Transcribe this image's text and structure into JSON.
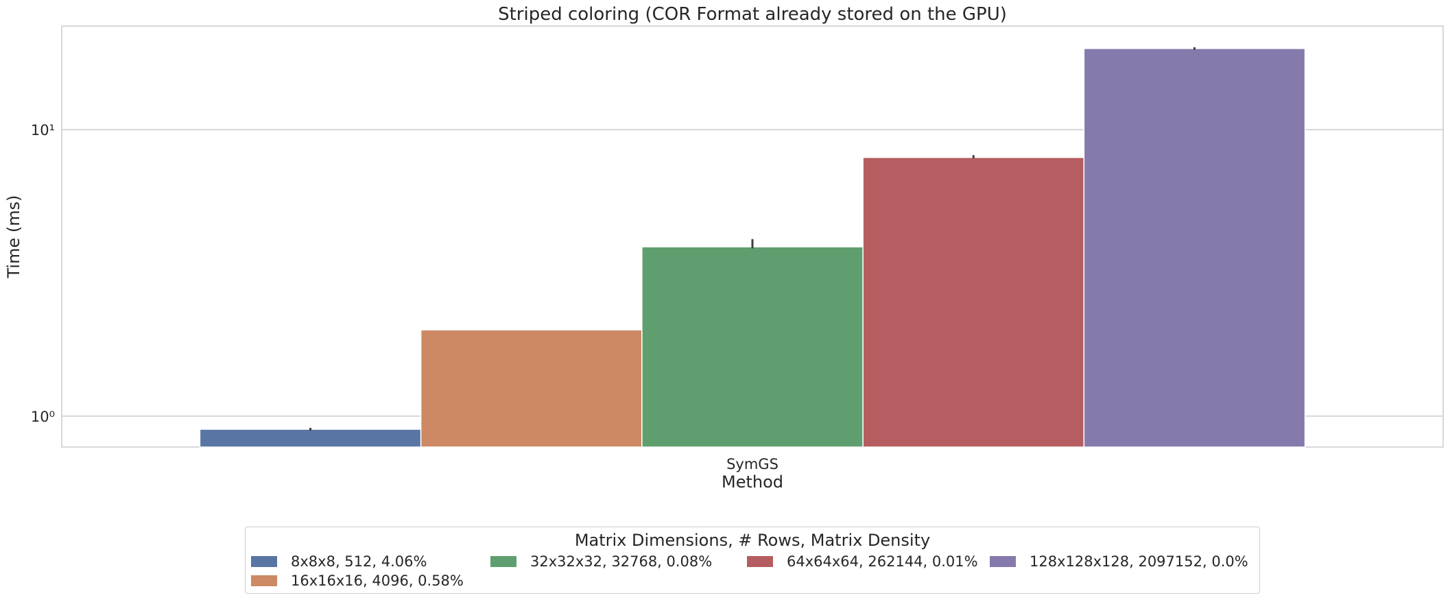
{
  "chart_data": {
    "type": "bar",
    "title": "Striped coloring (COR Format already stored on the GPU)",
    "xlabel": "Method",
    "ylabel": "Time (ms)",
    "yscale": "log",
    "ylim": [
      0.78,
      23
    ],
    "yticks": [
      {
        "value": 1,
        "label": "10⁰"
      },
      {
        "value": 10,
        "label": "10¹"
      }
    ],
    "categories": [
      "SymGS"
    ],
    "grid": true,
    "series": [
      {
        "name": "8x8x8, 512, 4.06%",
        "color": "#5975a4",
        "values": [
          0.9
        ],
        "error": [
          0.89,
          0.91
        ]
      },
      {
        "name": "16x16x16, 4096, 0.58%",
        "color": "#cc8963",
        "values": [
          2.0
        ],
        "error": [
          2.0,
          2.0
        ]
      },
      {
        "name": "32x32x32, 32768, 0.08%",
        "color": "#5f9e6e",
        "values": [
          3.9
        ],
        "error": [
          3.85,
          4.15
        ]
      },
      {
        "name": "64x64x64, 262144, 0.01%",
        "color": "#b55d60",
        "values": [
          8.0
        ],
        "error": [
          7.95,
          8.15
        ]
      },
      {
        "name": "128x128x128, 2097152, 0.0%",
        "color": "#857aab",
        "values": [
          19.2
        ],
        "error": [
          19.0,
          19.4
        ]
      }
    ],
    "legend": {
      "title": "Matrix Dimensions, # Rows, Matrix Density",
      "position": "bottom-center"
    }
  }
}
